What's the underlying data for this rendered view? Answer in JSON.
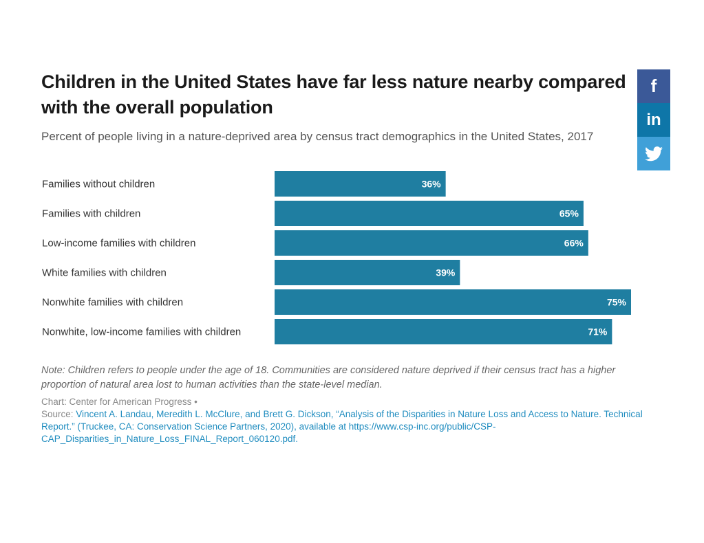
{
  "header": {
    "title": "Children in the United States have far less nature nearby compared with the overall population",
    "subtitle": "Percent of people living in a nature-deprived area by census tract demographics in the United States, 2017"
  },
  "social": [
    {
      "name": "facebook",
      "glyph": "f",
      "color": "#3b5998"
    },
    {
      "name": "linkedin",
      "glyph": "in",
      "color": "#0e76a8"
    },
    {
      "name": "twitter",
      "glyph": "twitter-bird",
      "color": "#40a0d8"
    }
  ],
  "chart_data": {
    "type": "bar",
    "orientation": "horizontal",
    "title": "Children in the United States have far less nature nearby compared with the overall population",
    "subtitle": "Percent of people living in a nature-deprived area by census tract demographics in the United States, 2017",
    "categories": [
      "Families without children",
      "Families with children",
      "Low-income families with children",
      "White families with children",
      "Nonwhite families with children",
      "Nonwhite, low-income families with children"
    ],
    "values": [
      36,
      65,
      66,
      39,
      75,
      71
    ],
    "value_labels": [
      "36%",
      "65%",
      "66%",
      "39%",
      "75%",
      "71%"
    ],
    "unit": "%",
    "xlabel": "",
    "ylabel": "",
    "xlim": [
      0,
      75
    ],
    "grid": false,
    "legend": "none",
    "bar_color": "#1f7ea1"
  },
  "footer": {
    "note": "Note: Children refers to people under the age of 18. Communities are considered nature deprived if their census tract has a higher proportion of natural area lost to human activities than the state-level median.",
    "chart_credit": "Chart: Center for American Progress •",
    "source_prefix": "Source: ",
    "source_text": "Vincent A. Landau, Meredith L. McClure, and Brett G. Dickson, “Analysis of the Disparities in Nature Loss and Access to Nature. Technical Report.” (Truckee, CA: Conservation Science Partners, 2020), available at https://www.csp-inc.org/public/CSP-CAP_Disparities_in_Nature_Loss_FINAL_Report_060120.pdf."
  }
}
